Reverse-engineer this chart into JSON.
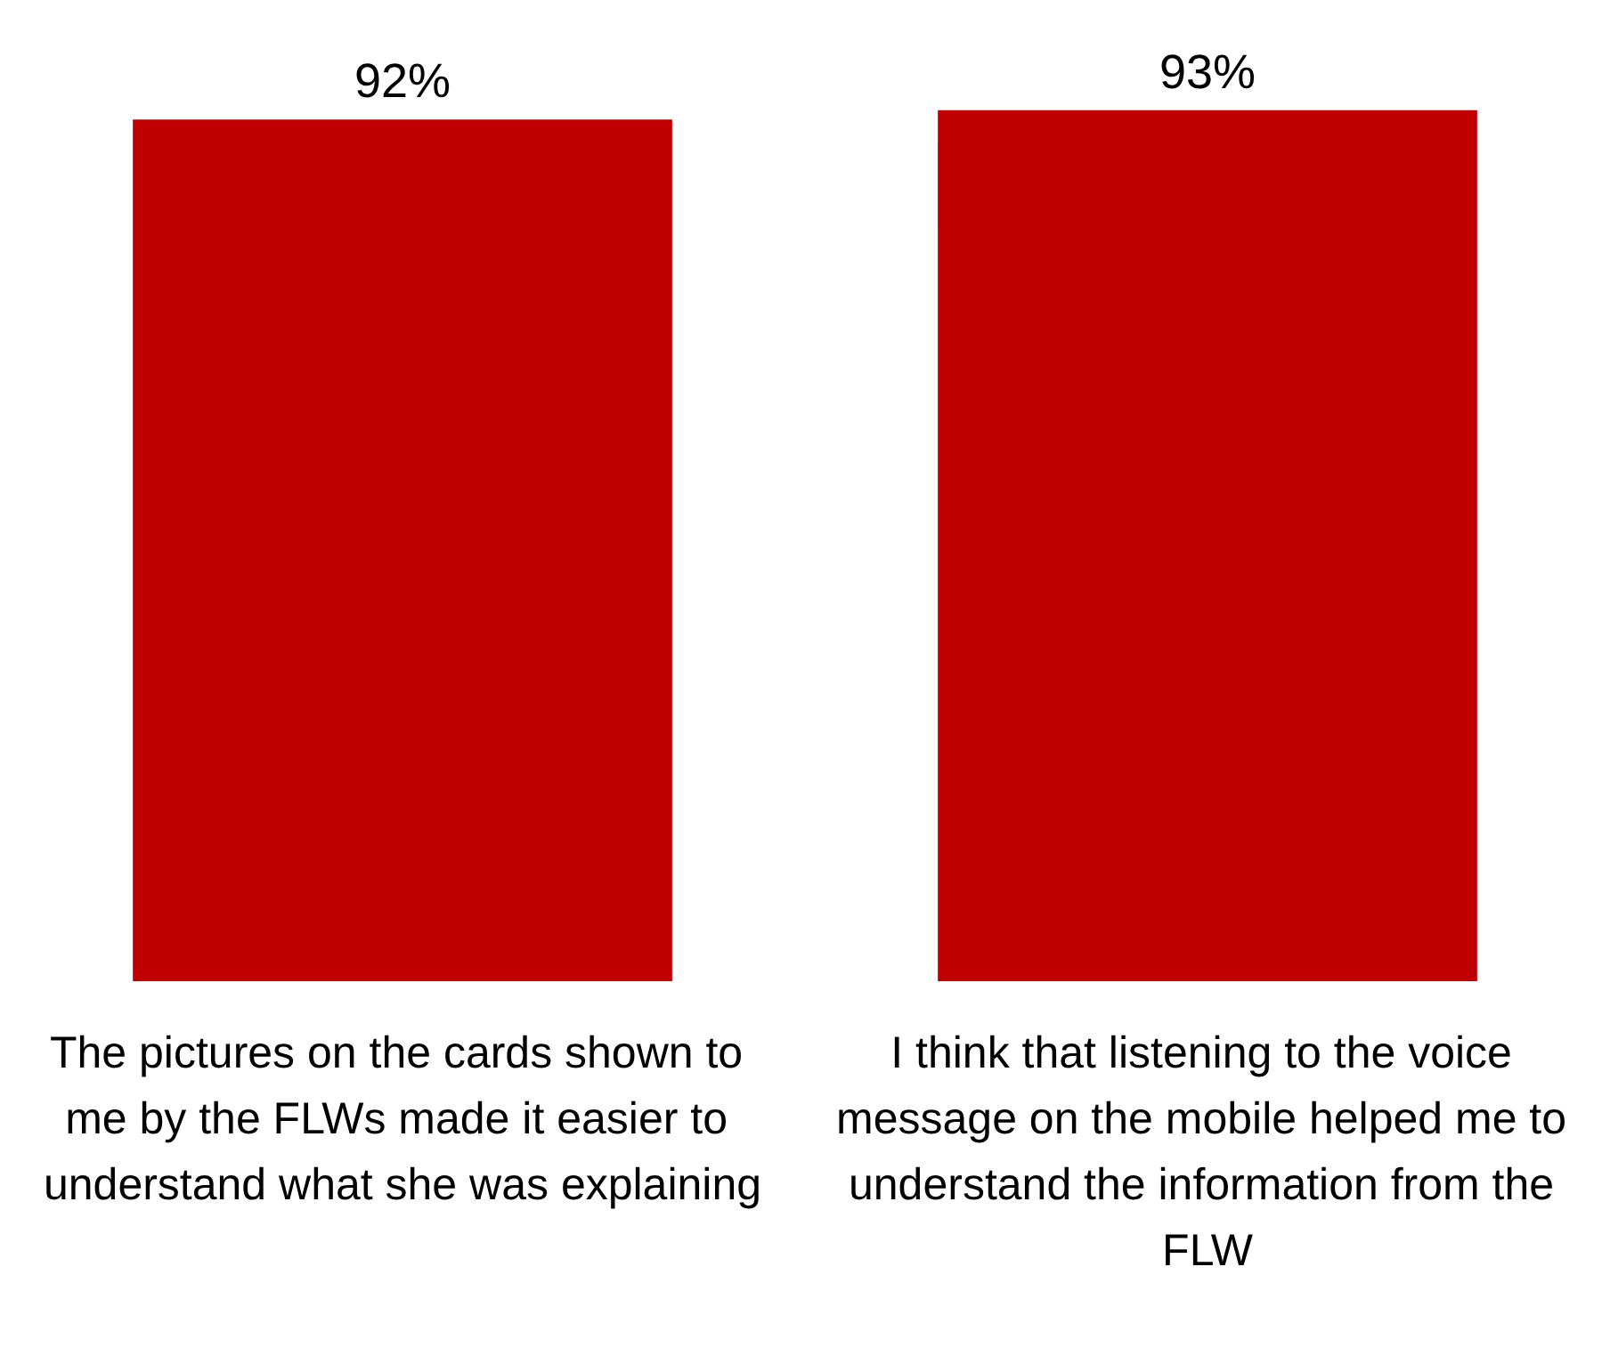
{
  "chart_data": {
    "type": "bar",
    "categories": [
      "The pictures on the cards shown to me by the FLWs made it easier to understand what she was explaining",
      "I think that listening to the voice message on the mobile helped me to understand the information from the FLW"
    ],
    "values": [
      92,
      93
    ],
    "value_labels": [
      "92%",
      "93%"
    ],
    "color": "#c00000",
    "grid": false,
    "tick_labels": "x"
  }
}
